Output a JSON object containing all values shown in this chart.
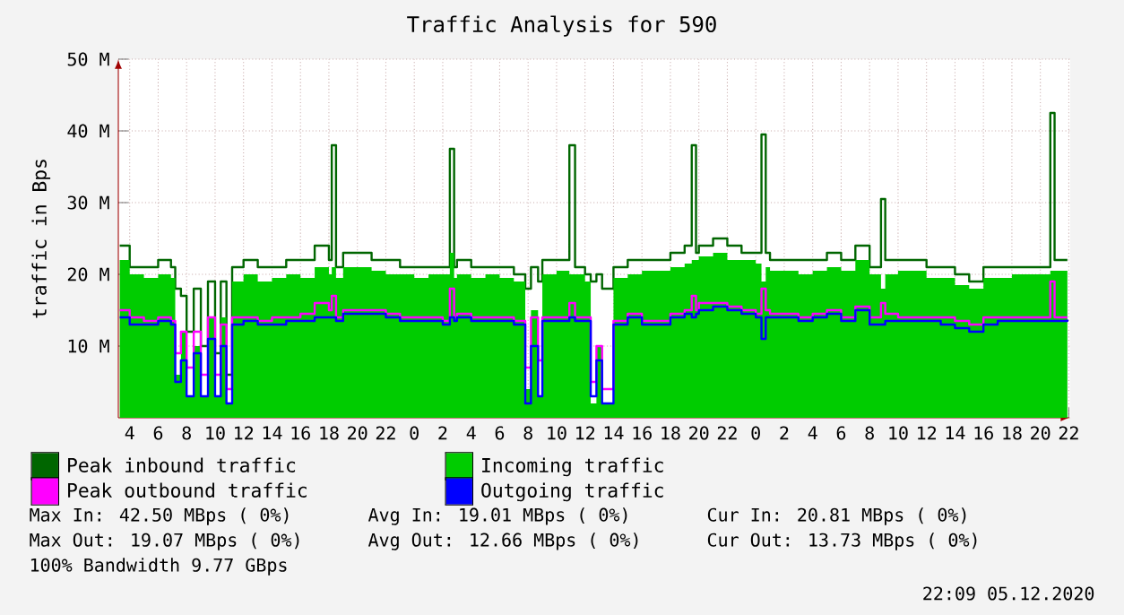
{
  "chart_data": {
    "type": "step",
    "title": "Traffic Analysis for 590",
    "ylabel": "traffic in Bps",
    "x": [
      "2020-12-03T03:18",
      "2020-12-03T04:00",
      "2020-12-03T05:00",
      "2020-12-03T06:00",
      "2020-12-03T06:54",
      "2020-12-03T07:12",
      "2020-12-03T07:36",
      "2020-12-03T08:00",
      "2020-12-03T08:30",
      "2020-12-03T09:00",
      "2020-12-03T09:30",
      "2020-12-03T10:00",
      "2020-12-03T10:24",
      "2020-12-03T10:48",
      "2020-12-03T11:12",
      "2020-12-03T12:00",
      "2020-12-03T13:00",
      "2020-12-03T14:00",
      "2020-12-03T15:00",
      "2020-12-03T16:00",
      "2020-12-03T17:00",
      "2020-12-03T18:00",
      "2020-12-03T18:12",
      "2020-12-03T18:30",
      "2020-12-03T19:00",
      "2020-12-03T20:00",
      "2020-12-03T21:00",
      "2020-12-03T22:00",
      "2020-12-03T23:00",
      "2020-12-04T00:00",
      "2020-12-04T01:00",
      "2020-12-04T02:00",
      "2020-12-04T02:30",
      "2020-12-04T02:48",
      "2020-12-04T03:00",
      "2020-12-04T04:00",
      "2020-12-04T05:00",
      "2020-12-04T06:00",
      "2020-12-04T07:00",
      "2020-12-04T07:48",
      "2020-12-04T08:12",
      "2020-12-04T08:42",
      "2020-12-04T09:00",
      "2020-12-04T10:00",
      "2020-12-04T10:54",
      "2020-12-04T11:18",
      "2020-12-04T12:00",
      "2020-12-04T12:24",
      "2020-12-04T12:48",
      "2020-12-04T13:12",
      "2020-12-04T14:00",
      "2020-12-04T15:00",
      "2020-12-04T16:00",
      "2020-12-04T17:00",
      "2020-12-04T18:00",
      "2020-12-04T19:00",
      "2020-12-04T19:30",
      "2020-12-04T19:48",
      "2020-12-04T20:00",
      "2020-12-04T21:00",
      "2020-12-04T22:00",
      "2020-12-04T23:00",
      "2020-12-05T00:00",
      "2020-12-05T00:24",
      "2020-12-05T00:42",
      "2020-12-05T01:00",
      "2020-12-05T02:00",
      "2020-12-05T03:00",
      "2020-12-05T04:00",
      "2020-12-05T05:00",
      "2020-12-05T06:00",
      "2020-12-05T07:00",
      "2020-12-05T08:00",
      "2020-12-05T08:48",
      "2020-12-05T09:06",
      "2020-12-05T10:00",
      "2020-12-05T11:00",
      "2020-12-05T12:00",
      "2020-12-05T13:00",
      "2020-12-05T14:00",
      "2020-12-05T15:00",
      "2020-12-05T16:00",
      "2020-12-05T17:00",
      "2020-12-05T18:00",
      "2020-12-05T19:00",
      "2020-12-05T20:00",
      "2020-12-05T20:42",
      "2020-12-05T21:00",
      "2020-12-05T21:54"
    ],
    "series": [
      {
        "name": "Peak inbound traffic",
        "color": "#006600",
        "values": [
          24,
          21,
          21,
          22,
          21,
          18,
          17,
          12,
          18,
          10,
          19,
          9,
          19,
          6,
          21,
          22,
          21,
          21,
          22,
          22,
          24,
          22,
          38,
          21,
          23,
          23,
          22,
          22,
          21,
          21,
          21,
          21,
          37.5,
          21,
          22,
          21,
          21,
          21,
          20,
          18,
          21,
          19,
          22,
          22,
          38,
          21,
          20,
          19,
          20,
          18,
          21,
          22,
          22,
          22,
          23,
          24,
          38,
          23,
          24,
          25,
          24,
          23,
          23,
          39.5,
          23,
          22,
          22,
          22,
          22,
          23,
          22,
          24,
          21,
          30.5,
          22,
          22,
          22,
          21,
          21,
          20,
          19,
          21,
          21,
          21,
          21,
          21,
          42.5,
          22,
          22
        ]
      },
      {
        "name": "Incoming traffic",
        "color": "#00cc00",
        "type": "area",
        "values": [
          22,
          20,
          19.5,
          20,
          19.5,
          6,
          12,
          3,
          10,
          3,
          14,
          3,
          14,
          2,
          19,
          20,
          19,
          19.5,
          20,
          19.5,
          21,
          20,
          21,
          19.5,
          21,
          21,
          20.5,
          20,
          20,
          19.5,
          20,
          20,
          23,
          19.5,
          20,
          19.5,
          20,
          19.5,
          19,
          4,
          15,
          3,
          20,
          20.5,
          20,
          20,
          19,
          2,
          10,
          2,
          19.5,
          20,
          20.5,
          20.5,
          21,
          21.5,
          22,
          22,
          22.5,
          23,
          22,
          22,
          21.5,
          19,
          21,
          20.5,
          20.5,
          20,
          20.5,
          21,
          20.5,
          22,
          20,
          18,
          20,
          20.5,
          20.5,
          19.5,
          19.5,
          18.5,
          18,
          19.5,
          19.5,
          20,
          20,
          20,
          20.5,
          20.5,
          20.8
        ]
      },
      {
        "name": "Peak outbound traffic",
        "color": "#ff00ff",
        "values": [
          15,
          14,
          13.5,
          14,
          13.5,
          9,
          12,
          7,
          12,
          6,
          14,
          6,
          13,
          4,
          14,
          14,
          13.5,
          14,
          14,
          14.5,
          16,
          15,
          17,
          14,
          15,
          15,
          15,
          14.5,
          14,
          14,
          14,
          13.5,
          18,
          14,
          14.5,
          14,
          14,
          14,
          13.5,
          7,
          14,
          8,
          14,
          14,
          16,
          14,
          14,
          5,
          10,
          4,
          13.5,
          14.5,
          13.5,
          13.5,
          14.5,
          15,
          17,
          15,
          16,
          16,
          15.5,
          15,
          14.5,
          18,
          15,
          14.5,
          14.5,
          14,
          14.5,
          15,
          14,
          15.5,
          14,
          16,
          14.5,
          14,
          14,
          14,
          14,
          13.5,
          13,
          14,
          14,
          14,
          14,
          14,
          19,
          14,
          14
        ]
      },
      {
        "name": "Outgoing traffic",
        "color": "#0000ff",
        "values": [
          14,
          13,
          13,
          13.5,
          13,
          5,
          8,
          3,
          9,
          3,
          11,
          3,
          10,
          2,
          13,
          13.5,
          13,
          13,
          13.5,
          13.5,
          14,
          14,
          14,
          13.5,
          14.5,
          14.5,
          14.5,
          14,
          13.5,
          13.5,
          13.5,
          13,
          14,
          13.5,
          14,
          13.5,
          13.5,
          13.5,
          13,
          2,
          10,
          3,
          13.5,
          13.5,
          14,
          13.5,
          13.5,
          3,
          8,
          2,
          13,
          14,
          13,
          13,
          14,
          14.5,
          14,
          14.5,
          15,
          15.5,
          15,
          14.5,
          14,
          11,
          14,
          14,
          14,
          13.5,
          14,
          14.5,
          13.5,
          15,
          13,
          13,
          13.5,
          13.5,
          13.5,
          13.5,
          13,
          12.5,
          12,
          13,
          13.5,
          13.5,
          13.5,
          13.5,
          13.5,
          13.5,
          13.7
        ]
      }
    ],
    "xlim": [
      "2020-12-03T03:12",
      "2020-12-05T22:06"
    ],
    "xticks": [
      {
        "value": "2020-12-03T04:00",
        "label": "4"
      },
      {
        "value": "2020-12-03T06:00",
        "label": "6"
      },
      {
        "value": "2020-12-03T08:00",
        "label": "8"
      },
      {
        "value": "2020-12-03T10:00",
        "label": "10"
      },
      {
        "value": "2020-12-03T12:00",
        "label": "12"
      },
      {
        "value": "2020-12-03T14:00",
        "label": "14"
      },
      {
        "value": "2020-12-03T16:00",
        "label": "16"
      },
      {
        "value": "2020-12-03T18:00",
        "label": "18"
      },
      {
        "value": "2020-12-03T20:00",
        "label": "20"
      },
      {
        "value": "2020-12-03T22:00",
        "label": "22"
      },
      {
        "value": "2020-12-04T00:00",
        "label": "0"
      },
      {
        "value": "2020-12-04T02:00",
        "label": "2"
      },
      {
        "value": "2020-12-04T04:00",
        "label": "4"
      },
      {
        "value": "2020-12-04T06:00",
        "label": "6"
      },
      {
        "value": "2020-12-04T08:00",
        "label": "8"
      },
      {
        "value": "2020-12-04T10:00",
        "label": "10"
      },
      {
        "value": "2020-12-04T12:00",
        "label": "12"
      },
      {
        "value": "2020-12-04T14:00",
        "label": "14"
      },
      {
        "value": "2020-12-04T16:00",
        "label": "16"
      },
      {
        "value": "2020-12-04T18:00",
        "label": "18"
      },
      {
        "value": "2020-12-04T20:00",
        "label": "20"
      },
      {
        "value": "2020-12-04T22:00",
        "label": "22"
      },
      {
        "value": "2020-12-05T00:00",
        "label": "0"
      },
      {
        "value": "2020-12-05T02:00",
        "label": "2"
      },
      {
        "value": "2020-12-05T04:00",
        "label": "4"
      },
      {
        "value": "2020-12-05T06:00",
        "label": "6"
      },
      {
        "value": "2020-12-05T08:00",
        "label": "8"
      },
      {
        "value": "2020-12-05T10:00",
        "label": "10"
      },
      {
        "value": "2020-12-05T12:00",
        "label": "12"
      },
      {
        "value": "2020-12-05T14:00",
        "label": "14"
      },
      {
        "value": "2020-12-05T16:00",
        "label": "16"
      },
      {
        "value": "2020-12-05T18:00",
        "label": "18"
      },
      {
        "value": "2020-12-05T20:00",
        "label": "20"
      },
      {
        "value": "2020-12-05T22:00",
        "label": "22"
      }
    ],
    "ylim": [
      0,
      50
    ],
    "yticks": [
      {
        "value": 10,
        "label": "10 M"
      },
      {
        "value": 20,
        "label": "20 M"
      },
      {
        "value": 30,
        "label": "30 M"
      },
      {
        "value": 40,
        "label": "40 M"
      },
      {
        "value": 50,
        "label": "50 M"
      }
    ],
    "grid": true,
    "legend": "bottom",
    "annotations": [
      "Max In:  42.50 MBps ( 0%)",
      "Avg In:  19.01 MBps ( 0%)",
      "Cur In:  20.81 MBps ( 0%)",
      "Max Out: 19.07 MBps ( 0%)",
      "Avg Out: 12.66 MBps ( 0%)",
      "Cur Out: 13.73 MBps ( 0%)",
      "100% Bandwidth 9.77 GBps",
      "22:09 05.12.2020"
    ]
  }
}
